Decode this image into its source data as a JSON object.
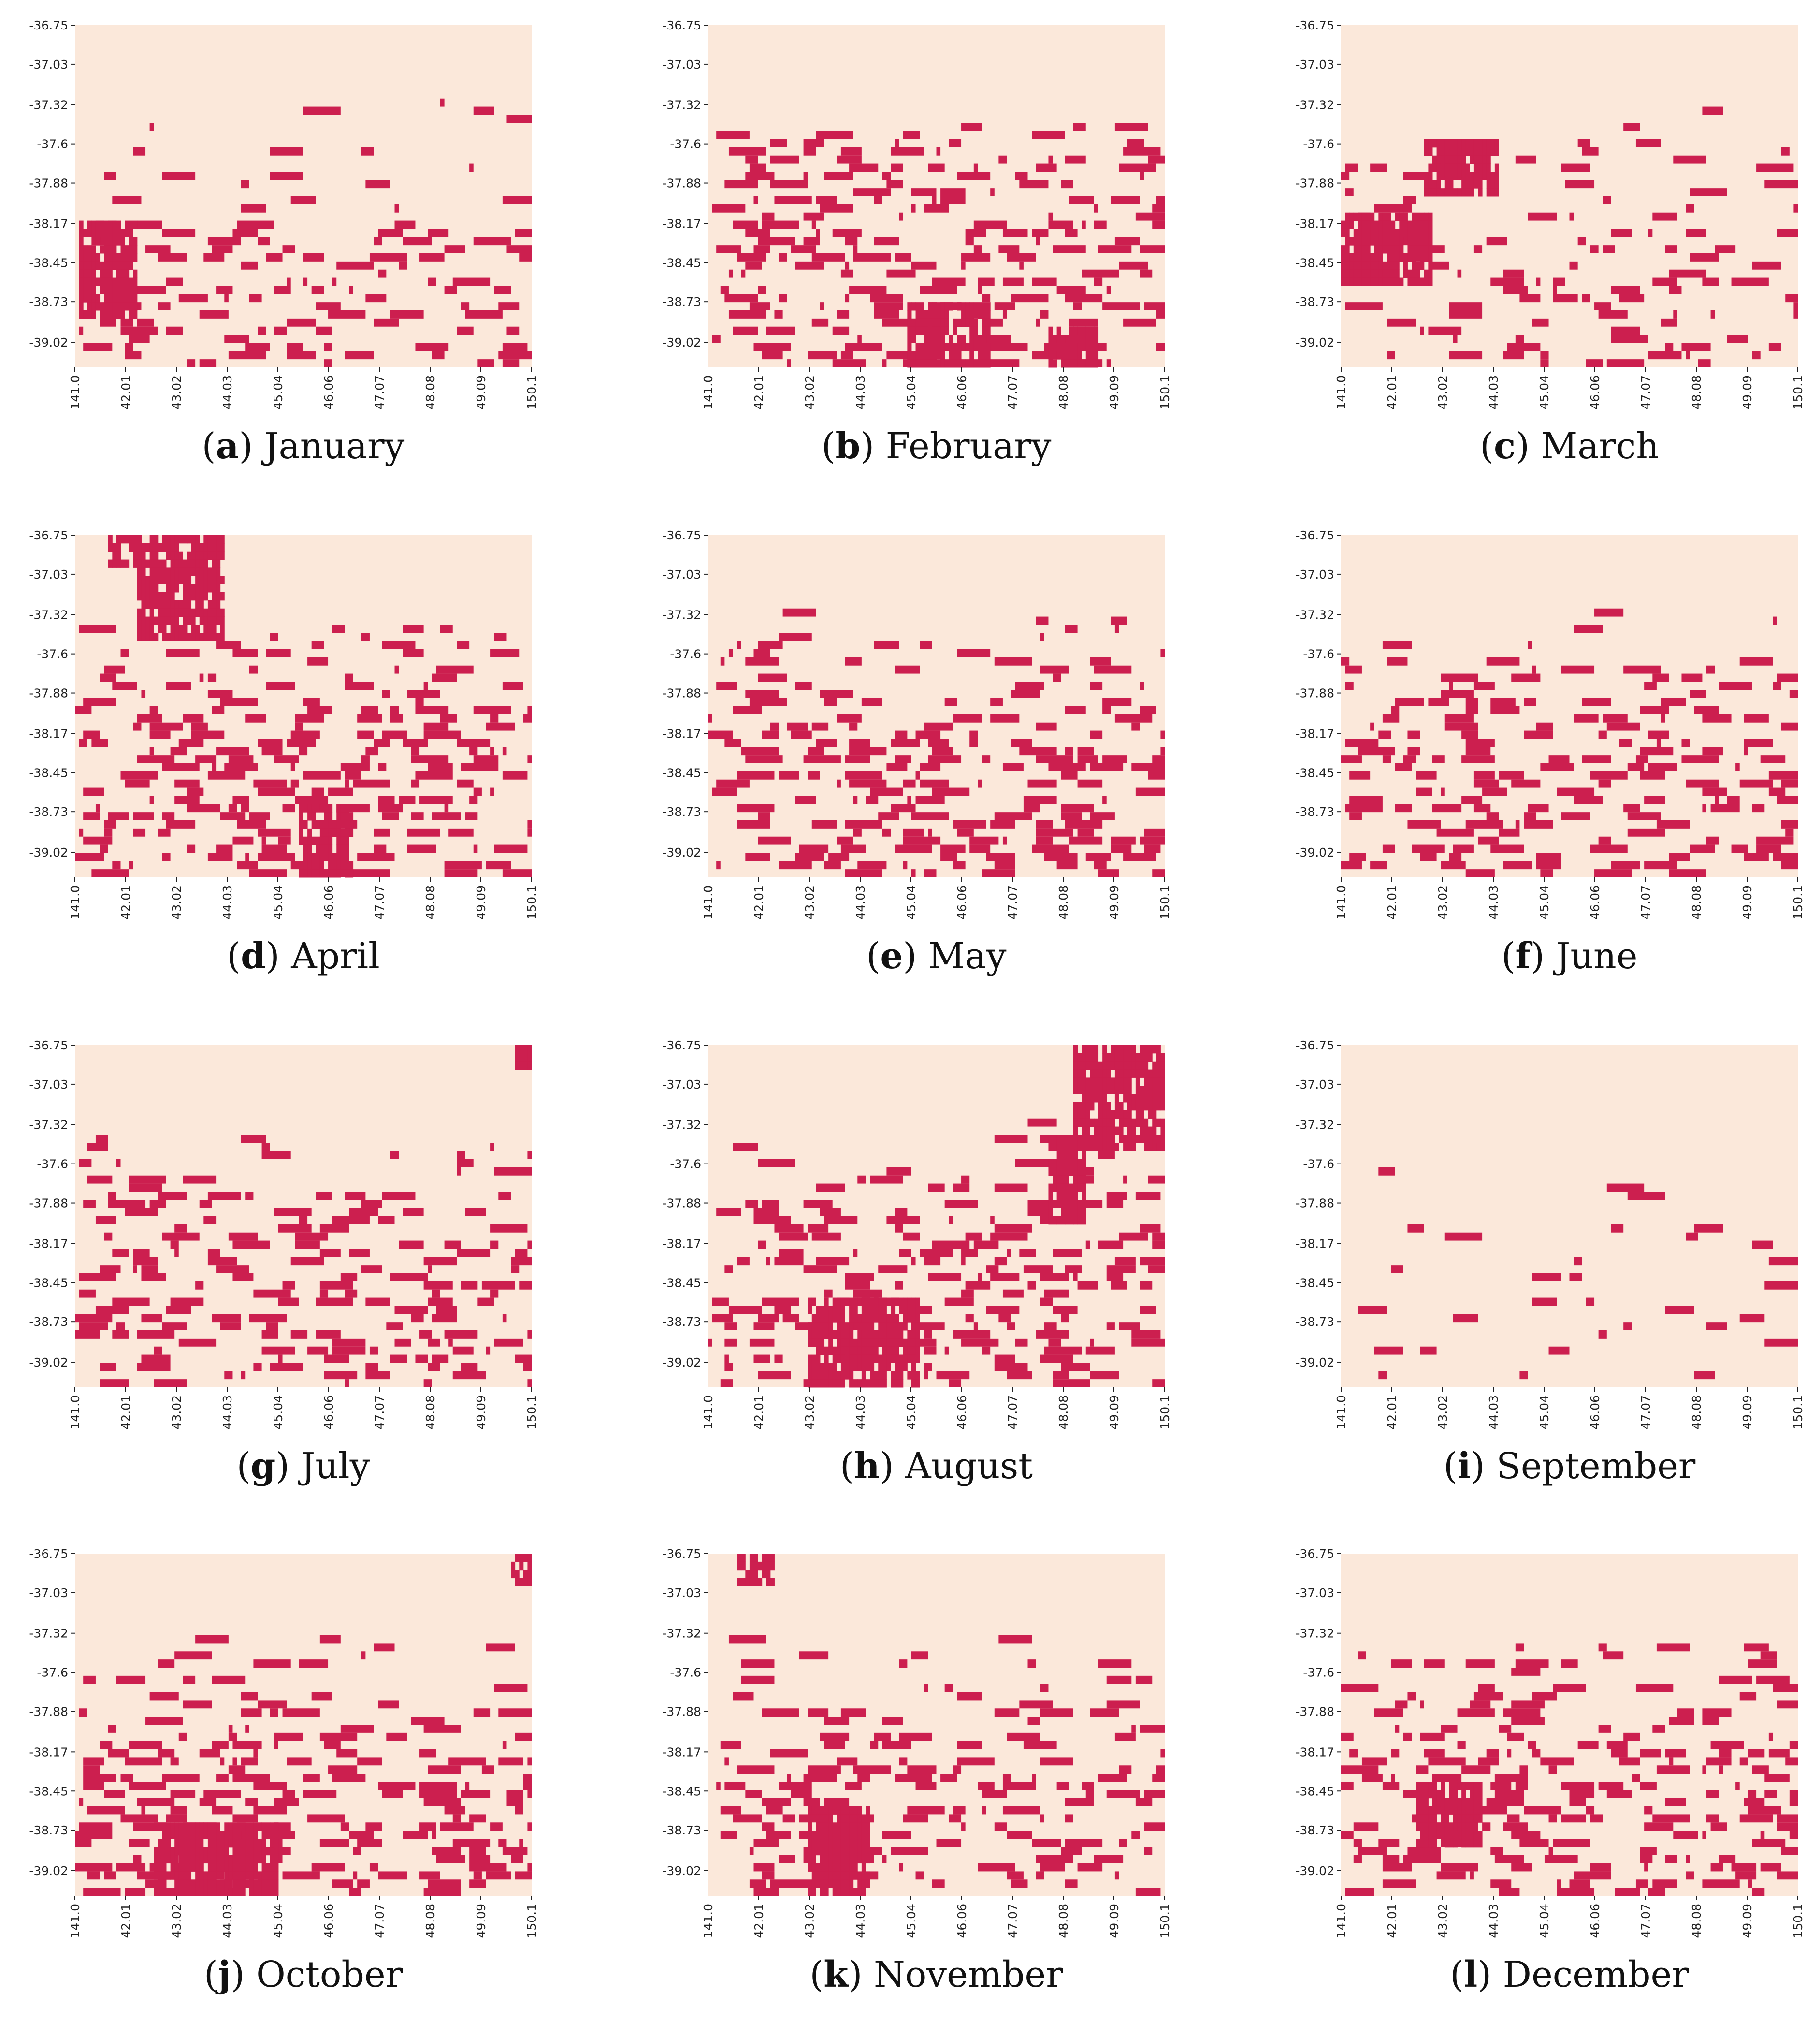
{
  "colors": {
    "background": "#fbe8da",
    "occupied": "#cc1f4f"
  },
  "chart_data": [
    {
      "type": "heatmap",
      "panel": "a",
      "caption_letter": "a",
      "caption_name": "January",
      "xticks": [
        "141.0",
        "42.01",
        "43.02",
        "44.03",
        "45.04",
        "46.06",
        "47.07",
        "48.08",
        "49.09",
        "150.1"
      ],
      "yticks": [
        "-36.75",
        "-37.03",
        "-37.32",
        "-37.6",
        "-37.88",
        "-38.17",
        "-38.45",
        "-38.73",
        "-39.02"
      ],
      "ylim": [
        -36.75,
        -39.2
      ],
      "xlim": [
        141.0,
        150.1
      ],
      "blobs": [
        {
          "x": [
            141.1,
            142.2
          ],
          "y": [
            -38.2,
            -38.85
          ]
        }
      ],
      "seed": 11,
      "density": 0.16
    },
    {
      "type": "heatmap",
      "panel": "b",
      "caption_letter": "b",
      "caption_name": "February",
      "xticks": [
        "141.0",
        "42.01",
        "43.02",
        "44.03",
        "45.04",
        "46.06",
        "47.07",
        "48.08",
        "49.09",
        "150.1"
      ],
      "yticks": [
        "-36.75",
        "-37.03",
        "-37.32",
        "-37.6",
        "-37.88",
        "-38.17",
        "-38.45",
        "-38.73",
        "-39.02"
      ],
      "ylim": [
        -36.75,
        -39.2
      ],
      "xlim": [
        141.0,
        150.1
      ],
      "blobs": [
        {
          "x": [
            145.0,
            146.6
          ],
          "y": [
            -38.75,
            -39.15
          ]
        },
        {
          "x": [
            147.8,
            148.7
          ],
          "y": [
            -38.95,
            -39.15
          ]
        }
      ],
      "seed": 23,
      "density": 0.26
    },
    {
      "type": "heatmap",
      "panel": "c",
      "caption_letter": "c",
      "caption_name": "March",
      "xticks": [
        "141.0",
        "42.01",
        "43.02",
        "44.03",
        "45.04",
        "46.06",
        "47.07",
        "48.08",
        "49.09",
        "150.1"
      ],
      "yticks": [
        "-36.75",
        "-37.03",
        "-37.32",
        "-37.6",
        "-37.88",
        "-38.17",
        "-38.45",
        "-38.73",
        "-39.02"
      ],
      "ylim": [
        -36.75,
        -39.2
      ],
      "xlim": [
        141.0,
        150.1
      ],
      "blobs": [
        {
          "x": [
            141.0,
            142.8
          ],
          "y": [
            -38.1,
            -38.6
          ]
        },
        {
          "x": [
            142.7,
            144.1
          ],
          "y": [
            -37.6,
            -37.95
          ]
        }
      ],
      "seed": 37,
      "density": 0.12
    },
    {
      "type": "heatmap",
      "panel": "d",
      "caption_letter": "d",
      "caption_name": "April",
      "xticks": [
        "141.0",
        "42.01",
        "43.02",
        "44.03",
        "45.04",
        "46.06",
        "47.07",
        "48.08",
        "49.09",
        "150.1"
      ],
      "yticks": [
        "-36.75",
        "-37.03",
        "-37.32",
        "-37.6",
        "-37.88",
        "-38.17",
        "-38.45",
        "-38.73",
        "-39.02"
      ],
      "ylim": [
        -36.75,
        -39.2
      ],
      "xlim": [
        141.0,
        150.1
      ],
      "blobs": [
        {
          "x": [
            141.7,
            142.3
          ],
          "y": [
            -36.75,
            -36.95
          ]
        },
        {
          "x": [
            142.3,
            143.9
          ],
          "y": [
            -36.75,
            -37.5
          ]
        },
        {
          "x": [
            145.5,
            146.5
          ],
          "y": [
            -38.7,
            -39.15
          ]
        }
      ],
      "seed": 41,
      "density": 0.3
    },
    {
      "type": "heatmap",
      "panel": "e",
      "caption_letter": "e",
      "caption_name": "May",
      "xticks": [
        "141.0",
        "42.01",
        "43.02",
        "44.03",
        "45.04",
        "46.06",
        "47.07",
        "48.08",
        "49.09",
        "150.1"
      ],
      "yticks": [
        "-36.75",
        "-37.03",
        "-37.32",
        "-37.6",
        "-37.88",
        "-38.17",
        "-38.45",
        "-38.73",
        "-39.02"
      ],
      "ylim": [
        -36.75,
        -39.2
      ],
      "xlim": [
        141.0,
        150.1
      ],
      "blobs": [],
      "seed": 53,
      "density": 0.28
    },
    {
      "type": "heatmap",
      "panel": "f",
      "caption_letter": "f",
      "caption_name": "June",
      "xticks": [
        "141.0",
        "42.01",
        "43.02",
        "44.03",
        "45.04",
        "46.06",
        "47.07",
        "48.08",
        "49.09",
        "150.1"
      ],
      "yticks": [
        "-36.75",
        "-37.03",
        "-37.32",
        "-37.6",
        "-37.88",
        "-38.17",
        "-38.45",
        "-38.73",
        "-39.02"
      ],
      "ylim": [
        -36.75,
        -39.2
      ],
      "xlim": [
        141.0,
        150.1
      ],
      "blobs": [],
      "seed": 67,
      "density": 0.24
    },
    {
      "type": "heatmap",
      "panel": "g",
      "caption_letter": "g",
      "caption_name": "July",
      "xticks": [
        "141.0",
        "42.01",
        "43.02",
        "44.03",
        "45.04",
        "46.06",
        "47.07",
        "48.08",
        "49.09",
        "150.1"
      ],
      "yticks": [
        "-36.75",
        "-37.03",
        "-37.32",
        "-37.6",
        "-37.88",
        "-38.17",
        "-38.45",
        "-38.73",
        "-39.02"
      ],
      "ylim": [
        -36.75,
        -39.2
      ],
      "xlim": [
        141.0,
        150.1
      ],
      "blobs": [
        {
          "x": [
            149.8,
            150.1
          ],
          "y": [
            -36.75,
            -36.92
          ]
        }
      ],
      "seed": 79,
      "density": 0.27
    },
    {
      "type": "heatmap",
      "panel": "h",
      "caption_letter": "h",
      "caption_name": "August",
      "xticks": [
        "141.0",
        "42.01",
        "43.02",
        "44.03",
        "45.04",
        "46.06",
        "47.07",
        "48.08",
        "49.09",
        "150.1"
      ],
      "yticks": [
        "-36.75",
        "-37.03",
        "-37.32",
        "-37.6",
        "-37.88",
        "-38.17",
        "-38.45",
        "-38.73",
        "-39.02"
      ],
      "ylim": [
        -36.75,
        -39.2
      ],
      "xlim": [
        141.0,
        150.1
      ],
      "blobs": [
        {
          "x": [
            148.3,
            150.1
          ],
          "y": [
            -36.75,
            -37.45
          ]
        },
        {
          "x": [
            143.0,
            145.2
          ],
          "y": [
            -38.6,
            -39.15
          ]
        },
        {
          "x": [
            147.8,
            148.5
          ],
          "y": [
            -37.4,
            -38.0
          ]
        }
      ],
      "seed": 83,
      "density": 0.3
    },
    {
      "type": "heatmap",
      "panel": "i",
      "caption_letter": "i",
      "caption_name": "September",
      "xticks": [
        "141.0",
        "42.01",
        "43.02",
        "44.03",
        "45.04",
        "46.06",
        "47.07",
        "48.08",
        "49.09",
        "150.1"
      ],
      "yticks": [
        "-36.75",
        "-37.03",
        "-37.32",
        "-37.6",
        "-37.88",
        "-38.17",
        "-38.45",
        "-38.73",
        "-39.02"
      ],
      "ylim": [
        -36.75,
        -39.2
      ],
      "xlim": [
        141.0,
        150.1
      ],
      "blobs": [],
      "seed": 97,
      "density": 0.05
    },
    {
      "type": "heatmap",
      "panel": "j",
      "caption_letter": "j",
      "caption_name": "October",
      "xticks": [
        "141.0",
        "42.01",
        "43.02",
        "44.03",
        "45.04",
        "46.06",
        "47.07",
        "48.08",
        "49.09",
        "150.1"
      ],
      "yticks": [
        "-36.75",
        "-37.03",
        "-37.32",
        "-37.6",
        "-37.88",
        "-38.17",
        "-38.45",
        "-38.73",
        "-39.02"
      ],
      "ylim": [
        -36.75,
        -39.2
      ],
      "xlim": [
        141.0,
        150.1
      ],
      "blobs": [
        {
          "x": [
            149.7,
            150.1
          ],
          "y": [
            -36.75,
            -36.98
          ]
        },
        {
          "x": [
            142.6,
            145.0
          ],
          "y": [
            -38.7,
            -39.15
          ]
        }
      ],
      "seed": 101,
      "density": 0.3
    },
    {
      "type": "heatmap",
      "panel": "k",
      "caption_letter": "k",
      "caption_name": "November",
      "xticks": [
        "141.0",
        "42.01",
        "43.02",
        "44.03",
        "45.04",
        "46.06",
        "47.07",
        "48.08",
        "49.09",
        "150.1"
      ],
      "yticks": [
        "-36.75",
        "-37.03",
        "-37.32",
        "-37.6",
        "-37.88",
        "-38.17",
        "-38.45",
        "-38.73",
        "-39.02"
      ],
      "ylim": [
        -36.75,
        -39.2
      ],
      "xlim": [
        141.0,
        150.1
      ],
      "blobs": [
        {
          "x": [
            141.6,
            142.3
          ],
          "y": [
            -36.75,
            -36.95
          ]
        },
        {
          "x": [
            143.0,
            144.2
          ],
          "y": [
            -38.6,
            -39.15
          ]
        }
      ],
      "seed": 113,
      "density": 0.22
    },
    {
      "type": "heatmap",
      "panel": "l",
      "caption_letter": "l",
      "caption_name": "December",
      "xticks": [
        "141.0",
        "42.01",
        "43.02",
        "44.03",
        "45.04",
        "46.06",
        "47.07",
        "48.08",
        "49.09",
        "150.1"
      ],
      "yticks": [
        "-36.75",
        "-37.03",
        "-37.32",
        "-37.6",
        "-37.88",
        "-38.17",
        "-38.45",
        "-38.73",
        "-39.02"
      ],
      "ylim": [
        -36.75,
        -39.2
      ],
      "xlim": [
        141.0,
        150.1
      ],
      "blobs": [
        {
          "x": [
            142.5,
            143.8
          ],
          "y": [
            -38.4,
            -38.85
          ]
        }
      ],
      "seed": 127,
      "density": 0.26
    }
  ]
}
